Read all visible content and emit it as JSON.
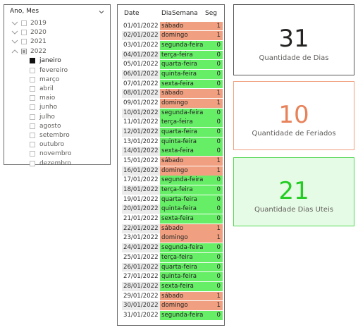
{
  "slicer": {
    "title": "Ano, Mes",
    "years": [
      {
        "label": "2019",
        "expanded": false,
        "state": "none"
      },
      {
        "label": "2020",
        "expanded": false,
        "state": "none"
      },
      {
        "label": "2021",
        "expanded": false,
        "state": "none"
      },
      {
        "label": "2022",
        "expanded": true,
        "state": "partial"
      }
    ],
    "months": [
      {
        "label": "janeiro",
        "checked": true
      },
      {
        "label": "fevereiro",
        "checked": false
      },
      {
        "label": "março",
        "checked": false
      },
      {
        "label": "abril",
        "checked": false
      },
      {
        "label": "maio",
        "checked": false
      },
      {
        "label": "junho",
        "checked": false
      },
      {
        "label": "julho",
        "checked": false
      },
      {
        "label": "agosto",
        "checked": false
      },
      {
        "label": "setembro",
        "checked": false
      },
      {
        "label": "outubro",
        "checked": false
      },
      {
        "label": "novembro",
        "checked": false
      },
      {
        "label": "dezembro",
        "checked": false
      }
    ]
  },
  "table": {
    "headers": {
      "date": "Date",
      "dia": "DiaSemana",
      "seg": "Seg"
    },
    "colors": {
      "weekend": "#f0a080",
      "weekday": "#66ee66"
    },
    "rows": [
      {
        "date": "01/01/2022",
        "dia": "sábado",
        "seg": "1"
      },
      {
        "date": "02/01/2022",
        "dia": "domingo",
        "seg": "1"
      },
      {
        "date": "03/01/2022",
        "dia": "segunda-feira",
        "seg": "0"
      },
      {
        "date": "04/01/2022",
        "dia": "terça-feira",
        "seg": "0"
      },
      {
        "date": "05/01/2022",
        "dia": "quarta-feira",
        "seg": "0"
      },
      {
        "date": "06/01/2022",
        "dia": "quinta-feira",
        "seg": "0"
      },
      {
        "date": "07/01/2022",
        "dia": "sexta-feira",
        "seg": "0"
      },
      {
        "date": "08/01/2022",
        "dia": "sábado",
        "seg": "1"
      },
      {
        "date": "09/01/2022",
        "dia": "domingo",
        "seg": "1"
      },
      {
        "date": "10/01/2022",
        "dia": "segunda-feira",
        "seg": "0"
      },
      {
        "date": "11/01/2022",
        "dia": "terça-feira",
        "seg": "0"
      },
      {
        "date": "12/01/2022",
        "dia": "quarta-feira",
        "seg": "0"
      },
      {
        "date": "13/01/2022",
        "dia": "quinta-feira",
        "seg": "0"
      },
      {
        "date": "14/01/2022",
        "dia": "sexta-feira",
        "seg": "0"
      },
      {
        "date": "15/01/2022",
        "dia": "sábado",
        "seg": "1"
      },
      {
        "date": "16/01/2022",
        "dia": "domingo",
        "seg": "1"
      },
      {
        "date": "17/01/2022",
        "dia": "segunda-feira",
        "seg": "0"
      },
      {
        "date": "18/01/2022",
        "dia": "terça-feira",
        "seg": "0"
      },
      {
        "date": "19/01/2022",
        "dia": "quarta-feira",
        "seg": "0"
      },
      {
        "date": "20/01/2022",
        "dia": "quinta-feira",
        "seg": "0"
      },
      {
        "date": "21/01/2022",
        "dia": "sexta-feira",
        "seg": "0"
      },
      {
        "date": "22/01/2022",
        "dia": "sábado",
        "seg": "1"
      },
      {
        "date": "23/01/2022",
        "dia": "domingo",
        "seg": "1"
      },
      {
        "date": "24/01/2022",
        "dia": "segunda-feira",
        "seg": "0"
      },
      {
        "date": "25/01/2022",
        "dia": "terça-feira",
        "seg": "0"
      },
      {
        "date": "26/01/2022",
        "dia": "quarta-feira",
        "seg": "0"
      },
      {
        "date": "27/01/2022",
        "dia": "quinta-feira",
        "seg": "0"
      },
      {
        "date": "28/01/2022",
        "dia": "sexta-feira",
        "seg": "0"
      },
      {
        "date": "29/01/2022",
        "dia": "sábado",
        "seg": "1"
      },
      {
        "date": "30/01/2022",
        "dia": "domingo",
        "seg": "1"
      },
      {
        "date": "31/01/2022",
        "dia": "segunda-feira",
        "seg": "0"
      }
    ]
  },
  "cards": {
    "dias": {
      "value": "31",
      "label": "Quantidade de Dias",
      "color": "#252423"
    },
    "feriados": {
      "value": "10",
      "label": "Quantidade de Feriados",
      "color": "#e8825a"
    },
    "uteis": {
      "value": "21",
      "label": "Quantidade Dias Uteis",
      "color": "#22cc22"
    }
  }
}
